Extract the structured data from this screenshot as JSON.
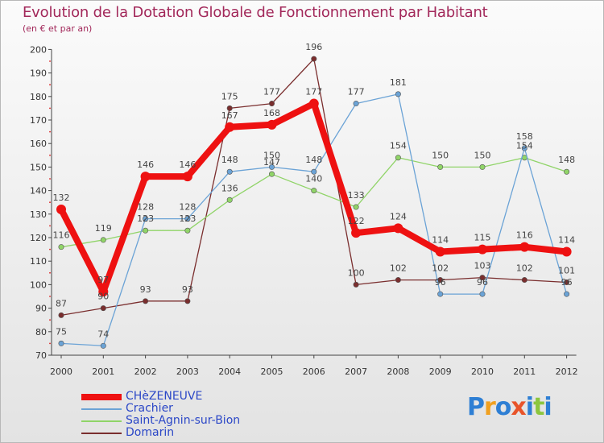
{
  "title": "Evolution de la Dotation Globale de Fonctionnement par Habitant",
  "subtitle": "(en € et par an)",
  "logo": {
    "letters": [
      "P",
      "r",
      "o",
      "x",
      "i",
      "t",
      "i"
    ],
    "colors": [
      "#2e7fd4",
      "#f0a020",
      "#2e7fd4",
      "#e8542a",
      "#2e7fd4",
      "#8cc63f",
      "#2e7fd4"
    ]
  },
  "chart_data": {
    "type": "line",
    "title": "Evolution de la Dotation Globale de Fonctionnement par Habitant",
    "ylabel": "(en € et par an)",
    "xlabel": "",
    "categories": [
      "2000",
      "2001",
      "2002",
      "2003",
      "2004",
      "2005",
      "2006",
      "2007",
      "2008",
      "2009",
      "2010",
      "2011",
      "2012"
    ],
    "ylim": [
      70,
      200
    ],
    "yticks": [
      70,
      80,
      90,
      100,
      110,
      120,
      130,
      140,
      150,
      160,
      170,
      180,
      190,
      200
    ],
    "grid": false,
    "legend_position": "bottom-left",
    "series": [
      {
        "name": "CHèZENEUVE",
        "color": "#ee1111",
        "values": [
          132,
          97,
          146,
          146,
          167,
          168,
          177,
          122,
          124,
          114,
          115,
          116,
          114
        ],
        "labels": [
          "132",
          "97",
          "146",
          "146",
          "167",
          "168",
          "177",
          "122",
          "124",
          "114",
          "115",
          "116",
          "114"
        ]
      },
      {
        "name": "Crachier",
        "color": "#6ba3d6",
        "values": [
          75,
          74,
          128,
          128,
          148,
          150,
          148,
          177,
          181,
          96,
          96,
          158,
          96
        ],
        "labels": [
          "75",
          "74",
          "128",
          "128",
          "148",
          "150",
          "148",
          "177",
          "181",
          "96",
          "96",
          "158",
          "96"
        ]
      },
      {
        "name": "Saint-Agnin-sur-Bion",
        "color": "#90d468",
        "values": [
          116,
          119,
          123,
          123,
          136,
          147,
          140,
          133,
          154,
          150,
          150,
          154,
          148
        ],
        "labels": [
          "116",
          "119",
          "123",
          "123",
          "136",
          "147",
          "140",
          "133",
          "154",
          "150",
          "150",
          "154",
          "148"
        ]
      },
      {
        "name": "Domarin",
        "color": "#7a2e2e",
        "values": [
          87,
          90,
          93,
          93,
          175,
          177,
          196,
          100,
          102,
          102,
          103,
          102,
          101
        ],
        "labels": [
          "87",
          "90",
          "93",
          "93",
          "175",
          "177",
          "196",
          "100",
          "102",
          "102",
          "103",
          "102",
          "101"
        ]
      }
    ]
  }
}
